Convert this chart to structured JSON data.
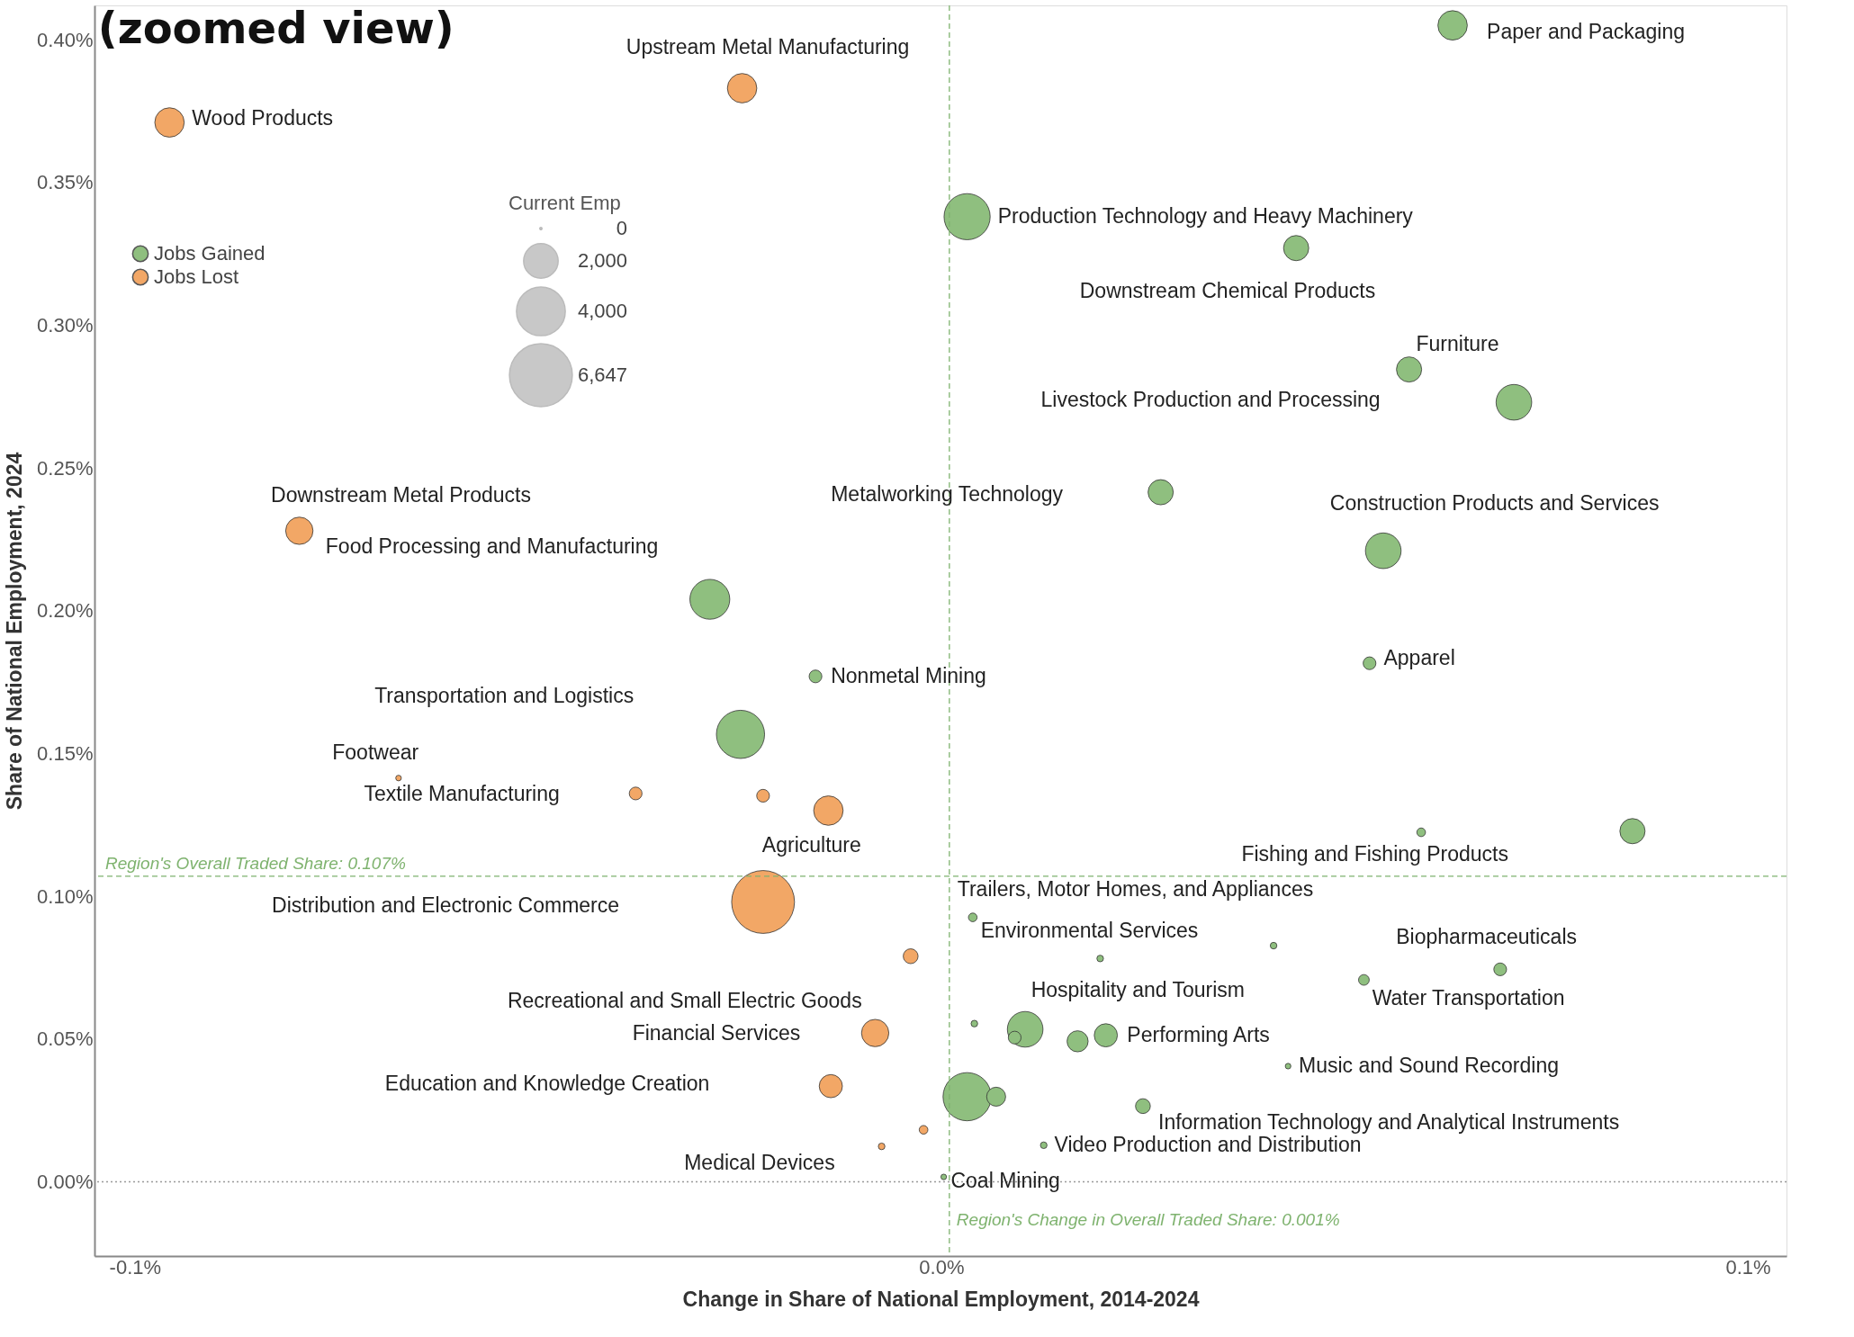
{
  "chart_data": {
    "type": "bubble",
    "xlabel": "Change in Share of National Employment, 2014-2024",
    "ylabel": "Share of National Employment, 2024",
    "legend_title": "Current Emp",
    "legend": "top left",
    "grid": false,
    "xlim": [
      -0.105,
      0.1048
    ],
    "ylim": [
      -0.026,
      0.412
    ],
    "xticks": [
      {
        "value": -0.1,
        "label": "-0.1%"
      },
      {
        "value": 0,
        "label": "0.0%"
      },
      {
        "value": 0.1,
        "label": "0.1%"
      }
    ],
    "yticks": [
      {
        "value": 0,
        "label": "0.00%"
      },
      {
        "value": 0.05,
        "label": "0.05%"
      },
      {
        "value": 0.1,
        "label": "0.10%"
      },
      {
        "value": 0.15,
        "label": "0.15%"
      },
      {
        "value": 0.2,
        "label": "0.20%"
      },
      {
        "value": 0.25,
        "label": "0.25%"
      },
      {
        "value": 0.3,
        "label": "0.30%"
      },
      {
        "value": 0.35,
        "label": "0.35%"
      },
      {
        "value": 0.4,
        "label": "0.40%"
      }
    ],
    "size_legend": [
      {
        "value": 0,
        "label": "0"
      },
      {
        "value": 2000,
        "label": "2,000"
      },
      {
        "value": 4000,
        "label": "4,000"
      },
      {
        "value": 6647,
        "label": "6,647"
      }
    ],
    "series": [
      {
        "name": "Jobs Gained",
        "color": "#8fbf7f",
        "x": [
          0.0634,
          0.0032,
          0.044,
          0.058,
          0.071,
          0.0272,
          0.0548,
          -0.0287,
          0.0531,
          -0.0156,
          -0.0249,
          0.0857,
          0.0595,
          0.0039,
          0.0197,
          0.0412,
          0.0524,
          0.0693,
          0.0041,
          0.0104,
          0.0091,
          0.0169,
          0.0204,
          0.043,
          0.0032,
          0.0068,
          0.025,
          0.0127,
          0.0003
        ],
        "values": [
          0.405,
          0.338,
          0.327,
          0.2845,
          0.273,
          0.2415,
          0.221,
          0.204,
          0.1816,
          0.177,
          0.1567,
          0.1228,
          0.1224,
          0.0926,
          0.0782,
          0.0827,
          0.0707,
          0.0744,
          0.0554,
          0.0534,
          0.0505,
          0.0492,
          0.0513,
          0.0405,
          0.0298,
          0.0298,
          0.0265,
          0.0128,
          0.0017
        ],
        "sizes": [
          1450,
          3575,
          1060,
          1060,
          2130,
          1060,
          2130,
          2670,
          266,
          266,
          3900,
          1060,
          118,
          118,
          66,
          66,
          185,
          266,
          66,
          2130,
          266,
          740,
          895,
          45,
          3900,
          600,
          362,
          66,
          45
        ]
      },
      {
        "name": "Jobs Lost",
        "color": "#f2a766",
        "x": [
          -0.0247,
          -0.0957,
          -0.0796,
          -0.0673,
          -0.0379,
          -0.0221,
          -0.014,
          -0.0221,
          -0.0038,
          -0.0082,
          -0.0137,
          -0.0022,
          -0.0074
        ],
        "values": [
          0.383,
          0.371,
          0.228,
          0.1414,
          0.136,
          0.1352,
          0.13,
          0.098,
          0.079,
          0.0521,
          0.0335,
          0.0182,
          0.0124
        ],
        "sizes": [
          1450,
          1450,
          1250,
          45,
          266,
          266,
          1450,
          6647,
          362,
          1250,
          895,
          118,
          66
        ]
      }
    ],
    "ref_lines": [
      {
        "axis": "y",
        "value": 0.107,
        "label": "Region's Overall Traded Share: 0.107%",
        "color": "#7fb36f",
        "line_style": "dashed"
      },
      {
        "axis": "x",
        "value": 0.001,
        "label": "Region's Change in Overall Traded Share: 0.001%",
        "color": "#7fb36f",
        "line_style": "dashed"
      },
      {
        "axis": "y",
        "value": 0,
        "label": null,
        "color": "#999999",
        "line_style": "dotted"
      }
    ],
    "annotations": [
      "(zoomed view)",
      {
        "text": "Paper and Packaging",
        "x": 0.0634,
        "y": 0.405
      },
      {
        "text": "Upstream Metal Manufacturing",
        "x": -0.0247,
        "y": 0.383
      },
      {
        "text": "Wood Products",
        "x": -0.0957,
        "y": 0.371
      },
      {
        "text": "Production Technology and Heavy Machinery",
        "x": 0.0032,
        "y": 0.338
      },
      {
        "text": "Downstream Chemical Products",
        "x": 0.044,
        "y": 0.327
      },
      {
        "text": "Furniture",
        "x": 0.058,
        "y": 0.2845
      },
      "Livestock Production and Processing",
      "Metalworking Technology",
      {
        "text": "Construction Products and Services",
        "x": 0.0548,
        "y": 0.221
      },
      {
        "text": "Downstream Metal Products",
        "x": -0.0796,
        "y": 0.228
      },
      "Food Processing and Manufacturing",
      {
        "text": "Apparel",
        "x": 0.0531,
        "y": 0.1816
      },
      {
        "text": "Nonmetal Mining",
        "x": -0.0156,
        "y": 0.177
      },
      "Transportation and Logistics",
      {
        "text": "Footwear",
        "x": -0.0673,
        "y": 0.1414
      },
      "Textile Manufacturing",
      {
        "text": "Agriculture",
        "x": -0.014,
        "y": 0.13
      },
      {
        "text": "Fishing and Fishing Products",
        "x": 0.0595,
        "y": 0.1224
      },
      "Distribution and Electronic Commerce",
      {
        "text": "Trailers, Motor Homes, and Appliances",
        "x": 0.0039,
        "y": 0.0926
      },
      {
        "text": "Environmental Services",
        "x": 0.0197,
        "y": 0.0782
      },
      {
        "text": "Biopharmaceuticals",
        "x": 0.0693,
        "y": 0.0744
      },
      {
        "text": "Hospitality and Tourism",
        "x": 0.0104,
        "y": 0.0534
      },
      {
        "text": "Water Transportation",
        "x": 0.0524,
        "y": 0.0707
      },
      "Recreational and Small Electric Goods",
      "Financial Services",
      {
        "text": "Performing Arts",
        "x": 0.0204,
        "y": 0.0513
      },
      {
        "text": "Music and Sound Recording",
        "x": 0.043,
        "y": 0.0405
      },
      "Education and Knowledge Creation",
      {
        "text": "Information Technology and Analytical Instruments",
        "x": 0.025,
        "y": 0.0265
      },
      {
        "text": "Video Production and Distribution",
        "x": 0.0127,
        "y": 0.0128
      },
      {
        "text": "Medical Devices",
        "x": -0.0074,
        "y": 0.0124
      },
      {
        "text": "Coal Mining",
        "x": 0.0003,
        "y": 0.0017
      }
    ]
  }
}
